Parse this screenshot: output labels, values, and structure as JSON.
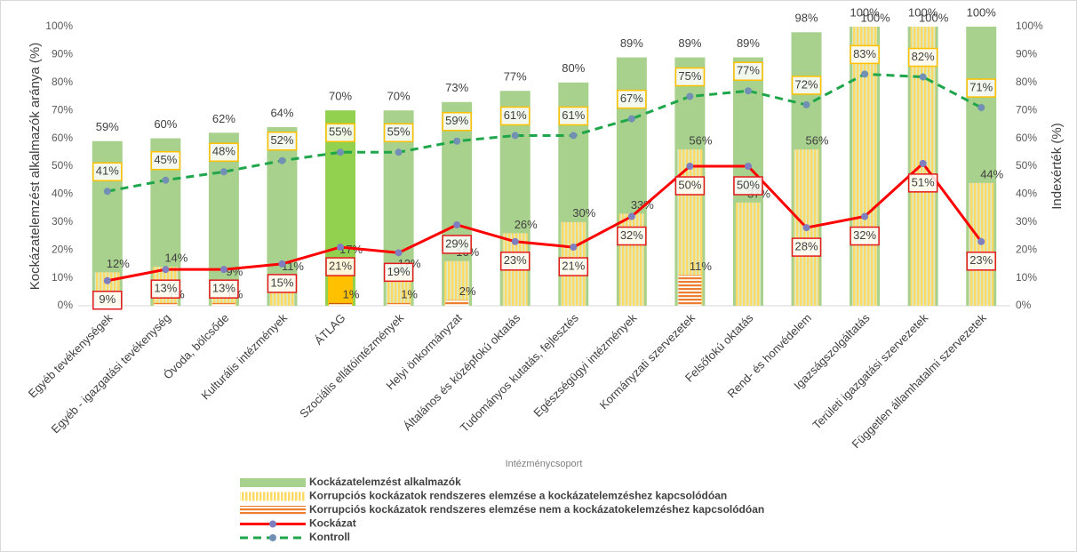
{
  "chart_data": {
    "type": "bar_line",
    "y_label": "Kockázatelemzést alkalmazók aránya (%)",
    "y2_label": "Indexérték (%)",
    "x_label": "Intézménycsoport",
    "categories": [
      "Egyéb tevékenységek",
      "Egyéb - igazgatási tevékenység",
      "Óvoda, bölcsőde",
      "Kulturális intézmények",
      "ÁTLAG",
      "Szociális ellátóintézmények",
      "Helyi önkormányzat",
      "Általános és középfokú oktatás",
      "Tudományos kutatás, fejlesztés",
      "Egészségügyi intézmények",
      "Kormányzati szervezetek",
      "Felsőfokú oktatás",
      "Rend- és honvédelem",
      "Igazságszolgáltatás",
      "Területi igazgatási szervezetek",
      "Független államhatalmi szervezetek"
    ],
    "highlight_category": "ÁTLAG",
    "series": [
      {
        "name": "Kockázatelemzést alkalmazók",
        "kind": "bar",
        "color": "#a9d18e",
        "highlight_color": "#92d050",
        "values": [
          59,
          60,
          62,
          64,
          70,
          70,
          73,
          77,
          80,
          89,
          89,
          89,
          98,
          100,
          100,
          100
        ],
        "value_labels": [
          "59%",
          "60%",
          "62%",
          "64%",
          "70%",
          "70%",
          "73%",
          "77%",
          "80%",
          "89%",
          "89%",
          "89%",
          "98%",
          "100%",
          "100%",
          "100%"
        ]
      },
      {
        "name": "Korrupciós kockázatok rendszeres elemzése a kockázatelemzéshez kapcsolódóan",
        "kind": "bar",
        "hatch": "vertical",
        "color": "#ffd966",
        "highlight_color": "#ffc000",
        "values": [
          12,
          14,
          9,
          11,
          17,
          12,
          16,
          26,
          30,
          33,
          56,
          37,
          56,
          100,
          100,
          44
        ],
        "value_labels": [
          "12%",
          "14%",
          "9%",
          "11%",
          "17%",
          "12%",
          "16%",
          "26%",
          "30%",
          "33%",
          "56%",
          "37%",
          "56%",
          "100%",
          "100%",
          "44%"
        ]
      },
      {
        "name": "Korrupciós kockázatok rendszeres elemzése nem a kockázatokelemzéshez kapcsolódóan",
        "kind": "bar",
        "hatch": "horizontal",
        "color": "#ed7d31",
        "highlight_color": "#c55a11",
        "values": [
          null,
          1,
          1,
          null,
          1,
          1,
          2,
          null,
          null,
          null,
          11,
          null,
          null,
          null,
          null,
          null
        ],
        "value_labels": [
          null,
          "1%",
          "1%",
          null,
          "1%",
          "1%",
          "2%",
          null,
          null,
          null,
          "11%",
          null,
          null,
          null,
          null,
          null
        ]
      },
      {
        "name": "Kockázat",
        "kind": "line",
        "axis": "y2",
        "color": "#ff0000",
        "marker_color": "#7f7fbf",
        "label_border": "#e31a1c",
        "label_side": "below",
        "values": [
          9,
          13,
          13,
          15,
          21,
          19,
          29,
          23,
          21,
          32,
          50,
          50,
          28,
          32,
          51,
          23
        ],
        "value_labels": [
          "9%",
          "13%",
          "13%",
          "15%",
          "21%",
          "19%",
          "29%",
          "23%",
          "21%",
          "32%",
          "50%",
          "50%",
          "28%",
          "32%",
          "51%",
          "23%"
        ]
      },
      {
        "name": "Kontroll",
        "kind": "line",
        "axis": "y2",
        "dashed": true,
        "color": "#1fa64a",
        "marker_color": "#7190b4",
        "label_border": "#ffc000",
        "label_side": "above",
        "values": [
          41,
          45,
          48,
          52,
          55,
          55,
          59,
          61,
          61,
          67,
          75,
          77,
          72,
          83,
          82,
          71
        ],
        "value_labels": [
          "41%",
          "45%",
          "48%",
          "52%",
          "55%",
          "55%",
          "59%",
          "61%",
          "61%",
          "67%",
          "75%",
          "77%",
          "72%",
          "83%",
          "82%",
          "71%"
        ]
      }
    ],
    "ylim": [
      0,
      100
    ],
    "yticks": [
      {
        "value": 0,
        "label": "0%"
      },
      {
        "value": 10,
        "label": "10%"
      },
      {
        "value": 20,
        "label": "20%"
      },
      {
        "value": 30,
        "label": "30%"
      },
      {
        "value": 40,
        "label": "40%"
      },
      {
        "value": 50,
        "label": "50%"
      },
      {
        "value": 60,
        "label": "60%"
      },
      {
        "value": 70,
        "label": "70%"
      },
      {
        "value": 80,
        "label": "80%"
      },
      {
        "value": 90,
        "label": "90%"
      },
      {
        "value": 100,
        "label": "100%"
      }
    ],
    "y2lim": [
      0,
      100
    ],
    "y2ticks": [
      {
        "value": 0,
        "label": "0%"
      },
      {
        "value": 10,
        "label": "10%"
      },
      {
        "value": 20,
        "label": "20%"
      },
      {
        "value": 30,
        "label": "30%"
      },
      {
        "value": 40,
        "label": "40%"
      },
      {
        "value": 50,
        "label": "50%"
      },
      {
        "value": 60,
        "label": "60%"
      },
      {
        "value": 70,
        "label": "70%"
      },
      {
        "value": 80,
        "label": "80%"
      },
      {
        "value": 90,
        "label": "90%"
      },
      {
        "value": 100,
        "label": "100%"
      }
    ],
    "legend": "bottom"
  }
}
